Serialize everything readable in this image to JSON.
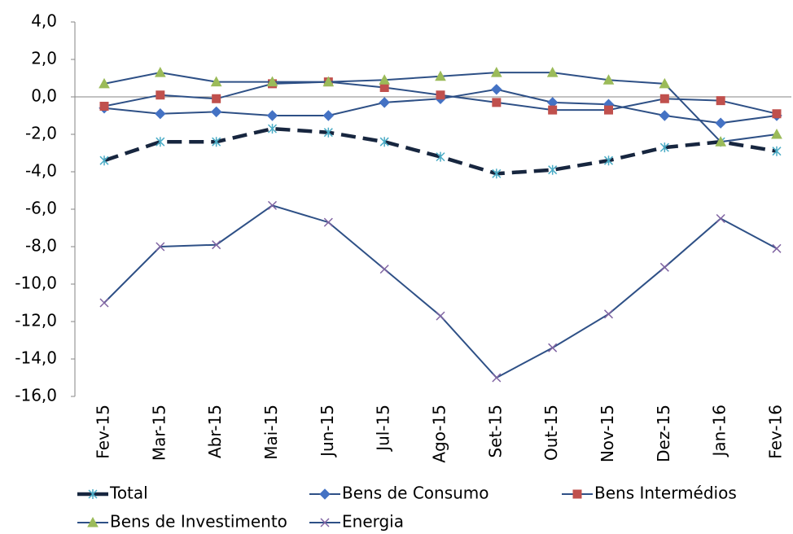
{
  "chart_data": {
    "type": "line",
    "categories": [
      "Fev-15",
      "Mar-15",
      "Abr-15",
      "Mai-15",
      "Jun-15",
      "Jul-15",
      "Ago-15",
      "Set-15",
      "Out-15",
      "Nov-15",
      "Dez-15",
      "Jan-16",
      "Fev-16"
    ],
    "ylim": [
      -16,
      4
    ],
    "yticks": [
      {
        "value": 4,
        "label": "4,0"
      },
      {
        "value": 2,
        "label": "2,0"
      },
      {
        "value": 0,
        "label": "0,0"
      },
      {
        "value": -2,
        "label": "-2,0"
      },
      {
        "value": -4,
        "label": "-4,0"
      },
      {
        "value": -6,
        "label": "-6,0"
      },
      {
        "value": -8,
        "label": "-8,0"
      },
      {
        "value": -10,
        "label": "-10,0"
      },
      {
        "value": -12,
        "label": "-12,0"
      },
      {
        "value": -14,
        "label": "-14,0"
      },
      {
        "value": -16,
        "label": "-16,0"
      }
    ],
    "legend": "bottom",
    "series": [
      {
        "name": "Total",
        "color": "#17263f",
        "marker_color": "#4bacc6",
        "marker": "asterisk",
        "line_style": "dashed",
        "values": [
          -3.4,
          -2.4,
          -2.4,
          -1.7,
          -1.9,
          -2.4,
          -3.2,
          -4.1,
          -3.9,
          -3.4,
          -2.7,
          -2.4,
          -2.9
        ]
      },
      {
        "name": "Bens de Consumo",
        "color": "#2e5086",
        "marker_color": "#4472c4",
        "marker": "diamond",
        "line_style": "solid",
        "values": [
          -0.6,
          -0.9,
          -0.8,
          -1.0,
          -1.0,
          -0.3,
          -0.1,
          0.4,
          -0.3,
          -0.4,
          -1.0,
          -1.4,
          -1.0
        ]
      },
      {
        "name": "Bens Intermédios",
        "color": "#2e5086",
        "marker_color": "#c0504d",
        "marker": "square",
        "line_style": "solid",
        "values": [
          -0.5,
          0.1,
          -0.1,
          0.7,
          0.8,
          0.5,
          0.1,
          -0.3,
          -0.7,
          -0.7,
          -0.1,
          -0.2,
          -0.9
        ]
      },
      {
        "name": "Bens de Investimento",
        "color": "#2e5086",
        "marker_color": "#9bbb59",
        "marker": "triangle",
        "line_style": "solid",
        "values": [
          0.7,
          1.3,
          0.8,
          0.8,
          0.8,
          0.9,
          1.1,
          1.3,
          1.3,
          0.9,
          0.7,
          -2.4,
          -2.0
        ]
      },
      {
        "name": "Energia",
        "color": "#2e5086",
        "marker_color": "#8064a2",
        "marker": "x",
        "line_style": "solid",
        "values": [
          -11.0,
          -8.0,
          -7.9,
          -5.8,
          -6.7,
          -9.2,
          -11.7,
          -15.0,
          -13.4,
          -11.6,
          -9.1,
          -6.5,
          -8.1
        ]
      }
    ]
  }
}
